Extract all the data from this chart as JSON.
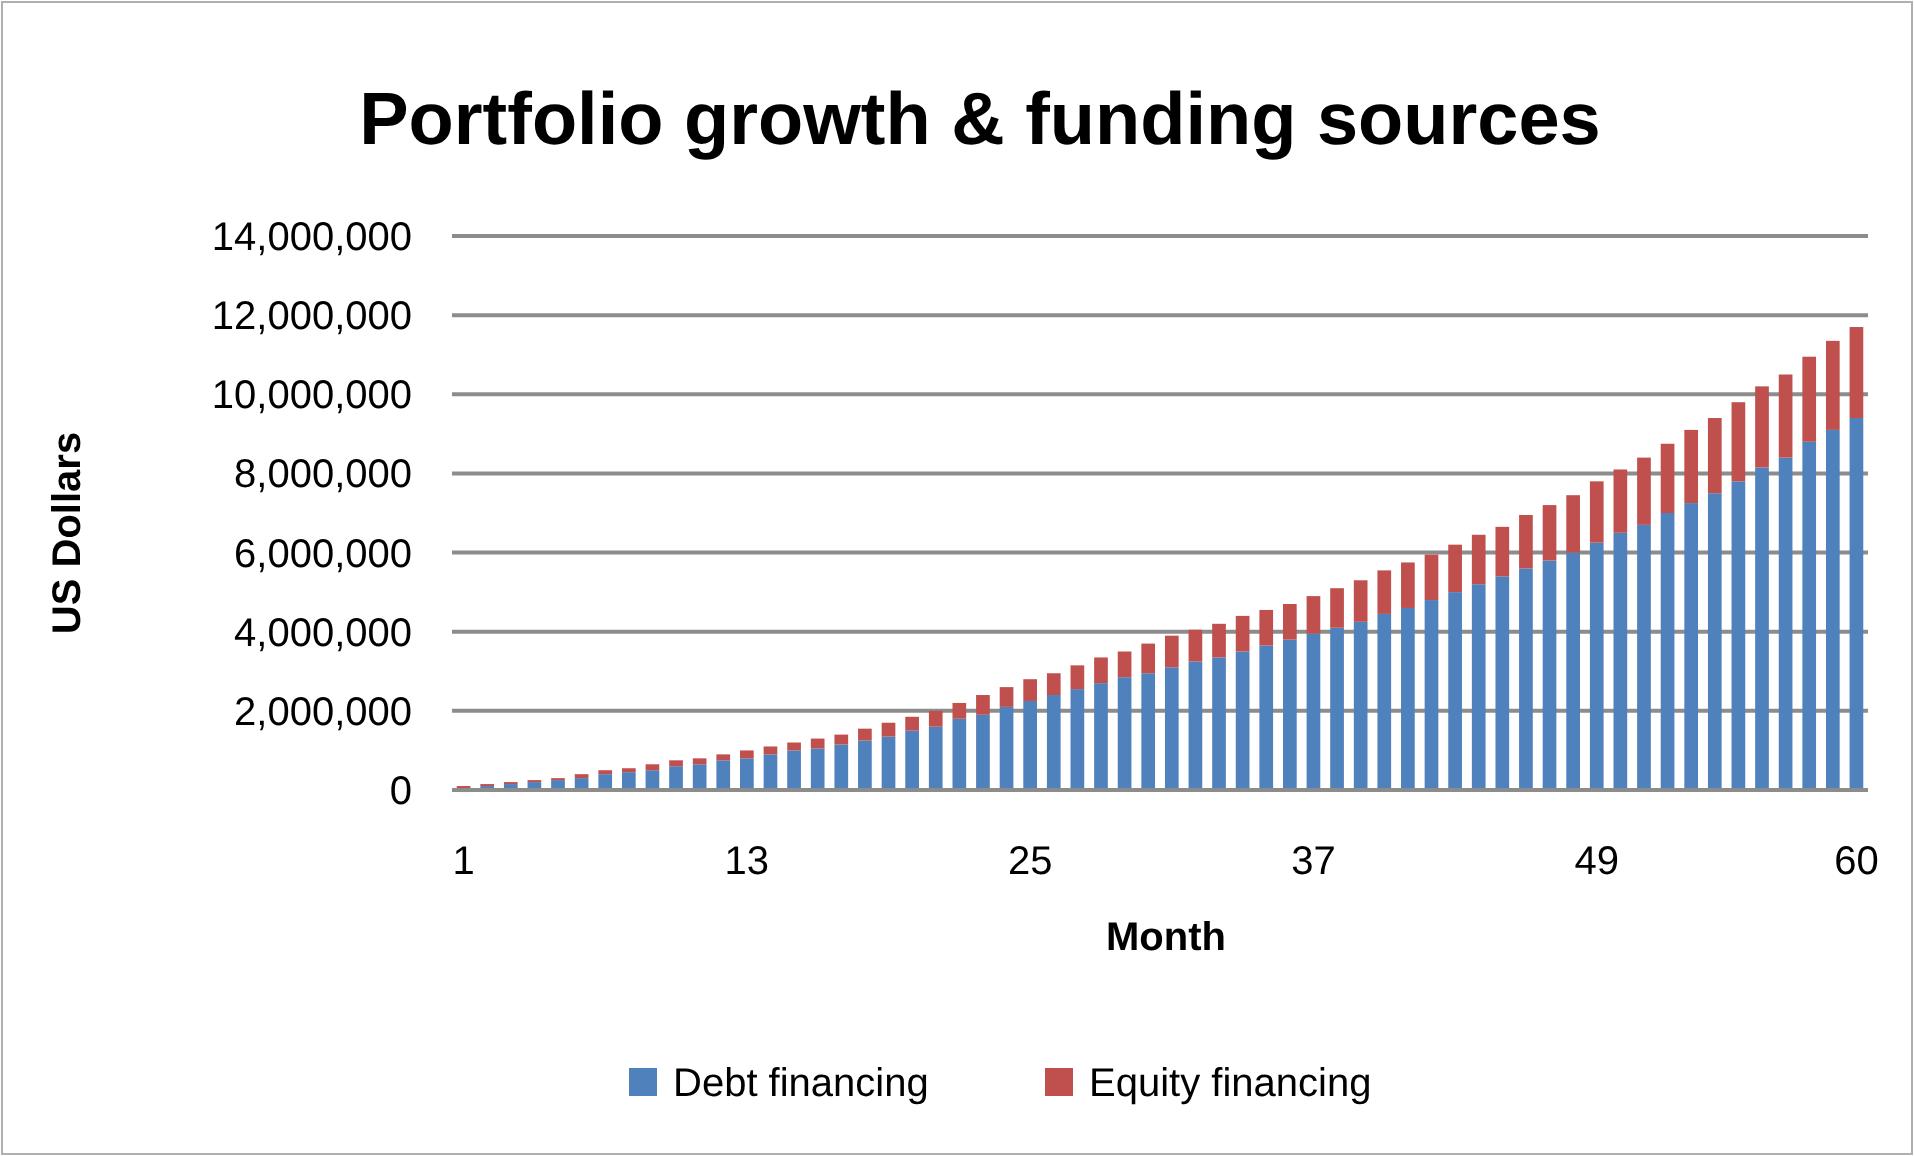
{
  "chart_data": {
    "type": "bar",
    "title": "Portfolio growth & funding sources",
    "xlabel": "Month",
    "ylabel": "US Dollars",
    "categories": [
      "1",
      null,
      null,
      null,
      null,
      null,
      null,
      null,
      null,
      null,
      null,
      null,
      "13",
      null,
      null,
      null,
      null,
      null,
      null,
      null,
      null,
      null,
      null,
      null,
      "25",
      null,
      null,
      null,
      null,
      null,
      null,
      null,
      null,
      null,
      null,
      null,
      "37",
      null,
      null,
      null,
      null,
      null,
      null,
      null,
      null,
      null,
      null,
      null,
      "49",
      null,
      null,
      null,
      null,
      null,
      null,
      null,
      null,
      null,
      null,
      "60"
    ],
    "stacked": true,
    "series": [
      {
        "name": "Debt financing",
        "color": "#4f81bd",
        "values": [
          50000,
          100000,
          150000,
          200000,
          250000,
          300000,
          400000,
          450000,
          500000,
          600000,
          650000,
          750000,
          800000,
          900000,
          1000000,
          1050000,
          1150000,
          1250000,
          1350000,
          1500000,
          1600000,
          1800000,
          1900000,
          2100000,
          2250000,
          2400000,
          2550000,
          2700000,
          2850000,
          2950000,
          3100000,
          3250000,
          3350000,
          3500000,
          3650000,
          3800000,
          3950000,
          4100000,
          4250000,
          4450000,
          4600000,
          4800000,
          5000000,
          5200000,
          5400000,
          5600000,
          5800000,
          6000000,
          6250000,
          6500000,
          6700000,
          7000000,
          7250000,
          7500000,
          7800000,
          8150000,
          8400000,
          8800000,
          9100000,
          9400000
        ]
      },
      {
        "name": "Equity financing",
        "color": "#c0504d",
        "values": [
          50000,
          50000,
          50000,
          50000,
          50000,
          100000,
          100000,
          100000,
          150000,
          150000,
          150000,
          150000,
          200000,
          200000,
          200000,
          250000,
          250000,
          300000,
          350000,
          350000,
          400000,
          400000,
          500000,
          500000,
          550000,
          550000,
          600000,
          650000,
          650000,
          750000,
          800000,
          800000,
          850000,
          900000,
          900000,
          900000,
          950000,
          1000000,
          1050000,
          1100000,
          1150000,
          1150000,
          1200000,
          1250000,
          1250000,
          1350000,
          1400000,
          1450000,
          1550000,
          1600000,
          1700000,
          1750000,
          1850000,
          1900000,
          2000000,
          2050000,
          2100000,
          2150000,
          2250000,
          2300000
        ]
      }
    ],
    "ylim": [
      0,
      14000000
    ],
    "yticks": [
      {
        "value": 0,
        "label": "0"
      },
      {
        "value": 2000000,
        "label": "2,000,000"
      },
      {
        "value": 4000000,
        "label": "4,000,000"
      },
      {
        "value": 6000000,
        "label": "6,000,000"
      },
      {
        "value": 8000000,
        "label": "8,000,000"
      },
      {
        "value": 10000000,
        "label": "10,000,000"
      },
      {
        "value": 12000000,
        "label": "12,000,000"
      },
      {
        "value": 14000000,
        "label": "14,000,000"
      }
    ],
    "grid": "y",
    "legend": "bottom"
  }
}
